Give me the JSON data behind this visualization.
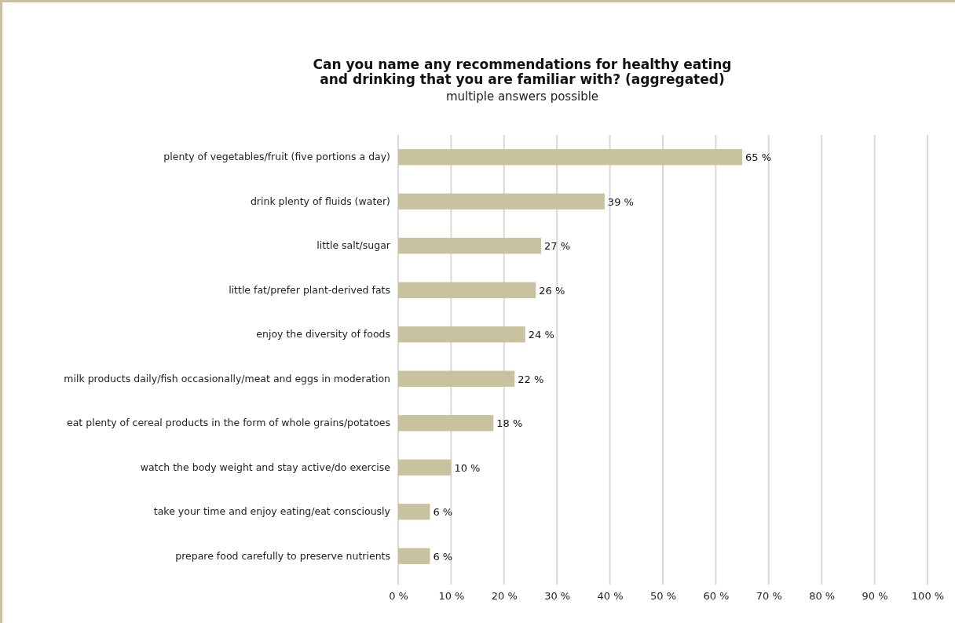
{
  "chart_data": {
    "type": "bar",
    "orientation": "horizontal",
    "title": "Can you name any recommendations for healthy eating\nand drinking that you are familiar with?  (aggregated)",
    "subtitle": "multiple answers possible",
    "categories": [
      "plenty of vegetables/fruit (five portions a day)",
      "drink plenty of fluids (water)",
      "little salt/sugar",
      "little fat/prefer plant-derived fats",
      "enjoy the diversity of foods",
      "milk products daily/fish occasionally/meat and eggs in moderation",
      "eat plenty of cereal products in the form of whole grains/potatoes",
      "watch the body weight and stay active/do exercise",
      "take your time and enjoy eating/eat consciously",
      "prepare food carefully to preserve nutrients"
    ],
    "values": [
      65,
      39,
      27,
      26,
      24,
      22,
      18,
      10,
      6,
      6
    ],
    "value_labels": [
      "65 %",
      "39 %",
      "27 %",
      "26 %",
      "24 %",
      "22 %",
      "18 %",
      "10 %",
      "6 %",
      "6 %"
    ],
    "color": "#c8c29e",
    "xlim": [
      0,
      100
    ],
    "xticks": [
      {
        "value": 0,
        "label": "0 %"
      },
      {
        "value": 10,
        "label": "10 %"
      },
      {
        "value": 20,
        "label": "20 %"
      },
      {
        "value": 30,
        "label": "30 %"
      },
      {
        "value": 40,
        "label": "40 %"
      },
      {
        "value": 50,
        "label": "50 %"
      },
      {
        "value": 60,
        "label": "60 %"
      },
      {
        "value": 70,
        "label": "70 %"
      },
      {
        "value": 80,
        "label": "80 %"
      },
      {
        "value": 90,
        "label": "90 %"
      },
      {
        "value": 100,
        "label": "100 %"
      }
    ],
    "grid": "x"
  }
}
